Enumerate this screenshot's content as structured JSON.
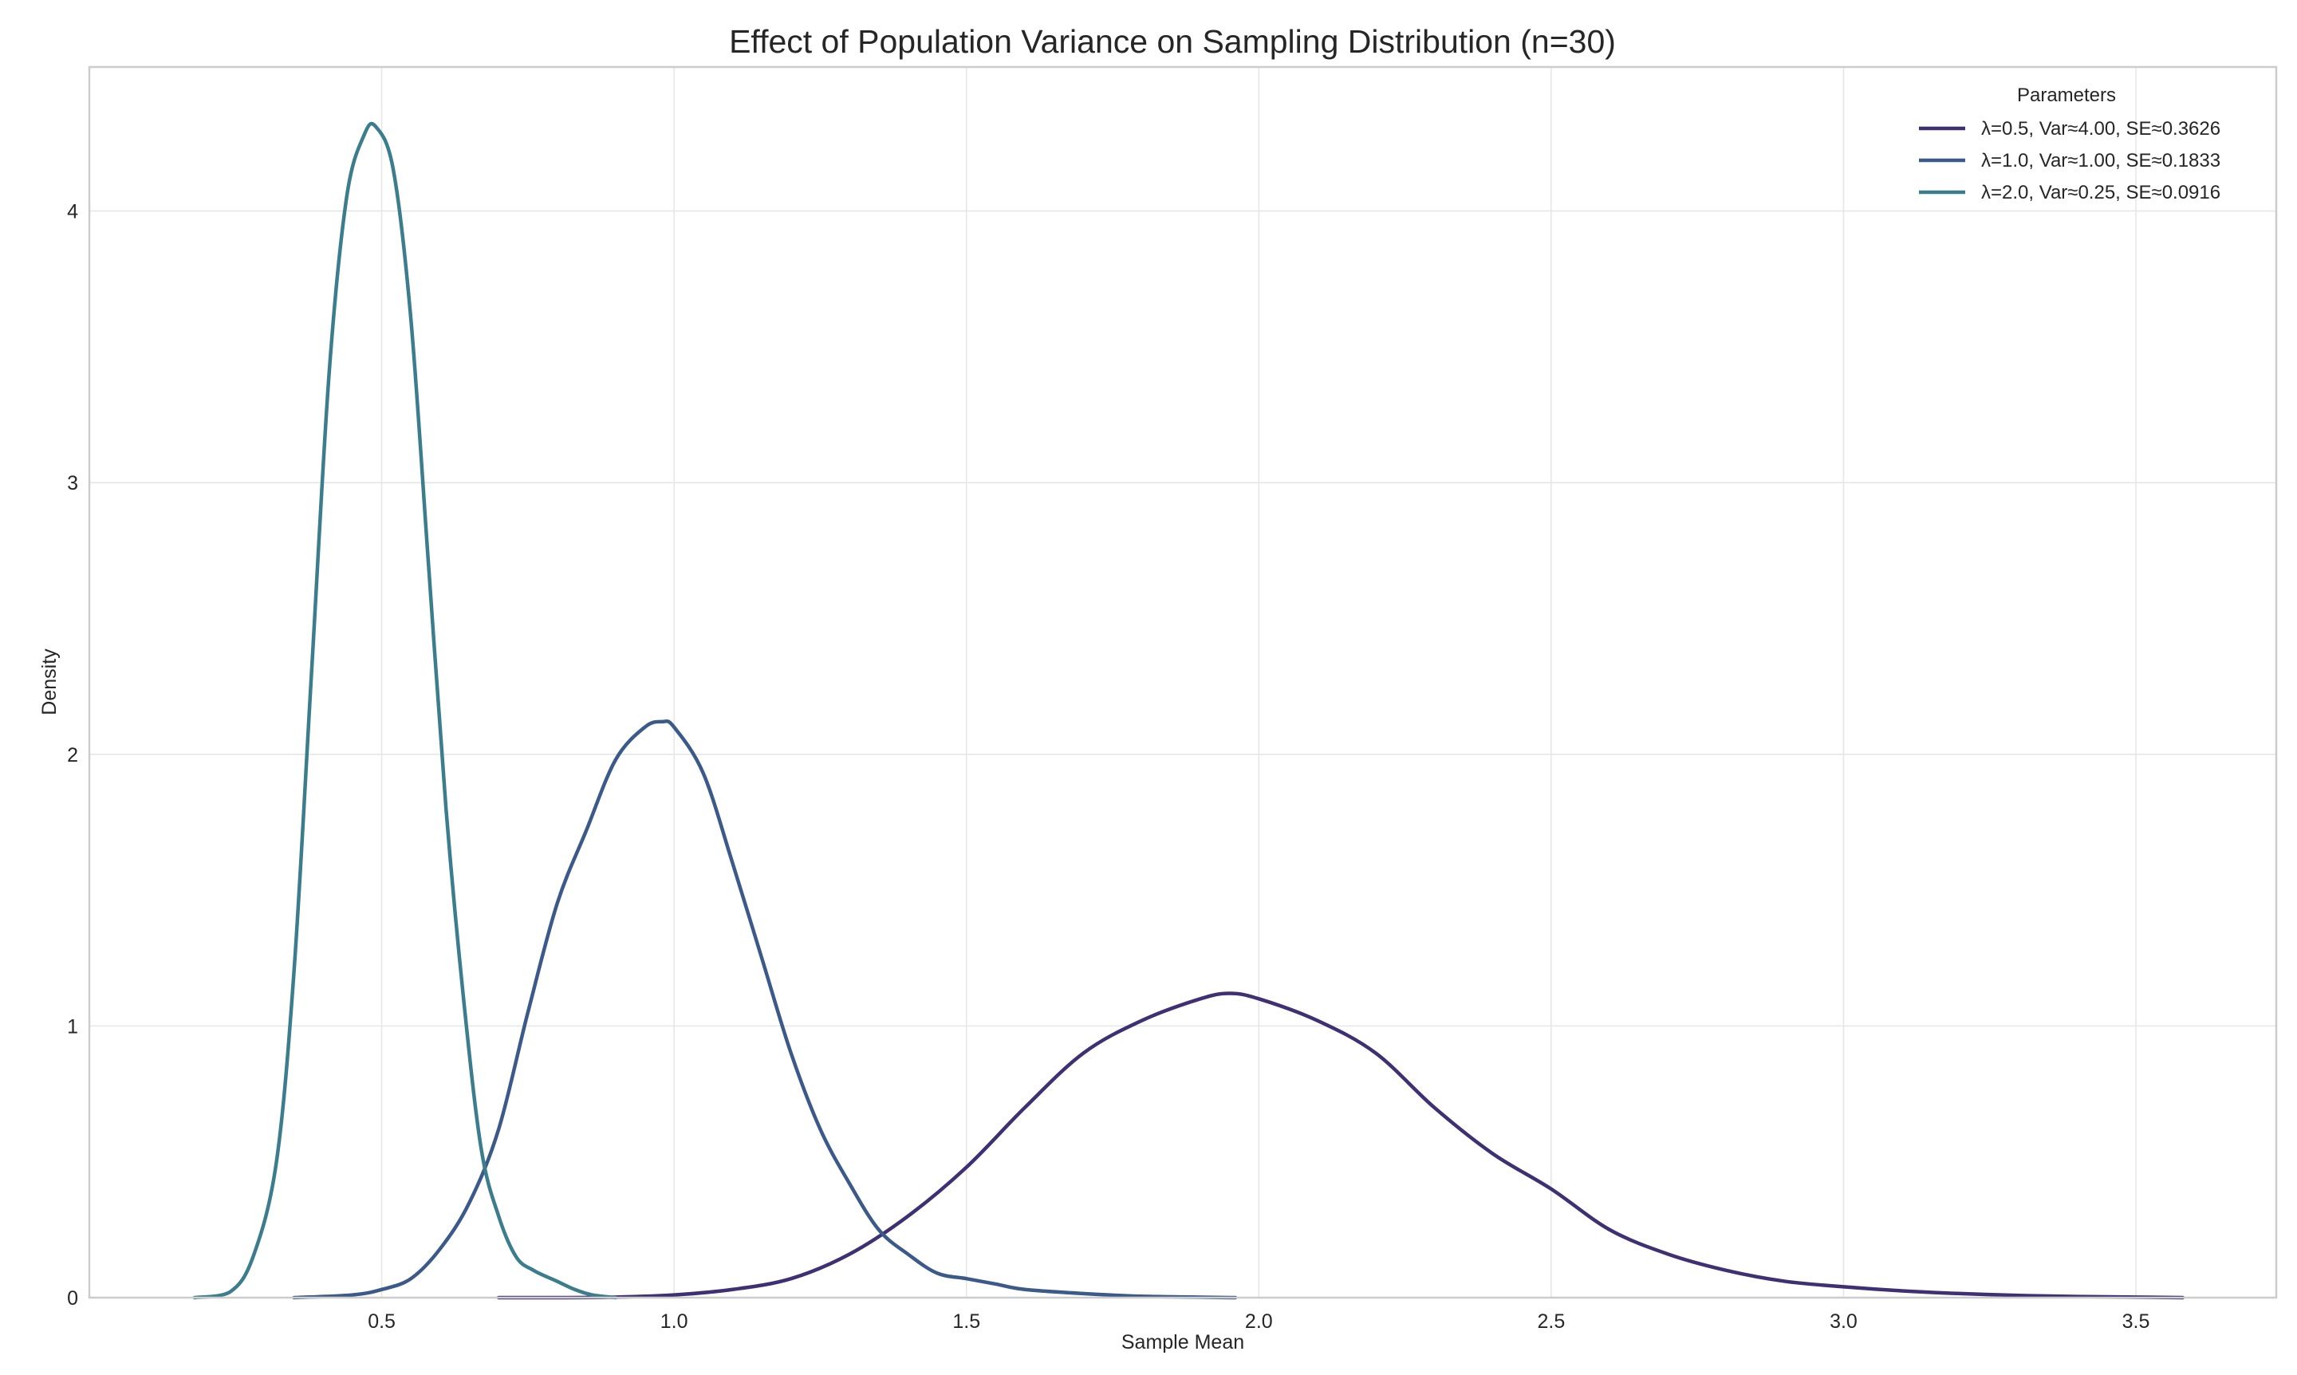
{
  "chart_data": {
    "type": "line",
    "title": "Effect of Population Variance on Sampling Distribution (n=30)",
    "xlabel": "Sample Mean",
    "ylabel": "Density",
    "xlim": [
      0.0,
      3.74
    ],
    "ylim": [
      0,
      4.53
    ],
    "xticks": [
      0.5,
      1.0,
      1.5,
      2.0,
      2.5,
      3.0,
      3.5
    ],
    "xtick_labels": [
      "0.5",
      "1.0",
      "1.5",
      "2.0",
      "2.5",
      "3.0",
      "3.5"
    ],
    "yticks": [
      0,
      1,
      2,
      3,
      4
    ],
    "ytick_labels": [
      "0",
      "1",
      "2",
      "3",
      "4"
    ],
    "grid": true,
    "legend": {
      "title": "Parameters",
      "position": "top-right"
    },
    "series": [
      {
        "name": "λ=0.5, Var≈4.00, SE≈0.3626",
        "color": "#3f2f73",
        "x": [
          0.7,
          0.8,
          0.9,
          1.0,
          1.1,
          1.2,
          1.3,
          1.4,
          1.5,
          1.6,
          1.7,
          1.8,
          1.9,
          1.95,
          2.0,
          2.1,
          2.2,
          2.3,
          2.4,
          2.5,
          2.6,
          2.7,
          2.8,
          2.9,
          3.0,
          3.1,
          3.2,
          3.3,
          3.4,
          3.5,
          3.58
        ],
        "y": [
          0.0,
          0.0,
          0.002,
          0.01,
          0.03,
          0.07,
          0.16,
          0.3,
          0.48,
          0.7,
          0.9,
          1.02,
          1.1,
          1.12,
          1.1,
          1.02,
          0.9,
          0.7,
          0.53,
          0.4,
          0.25,
          0.16,
          0.1,
          0.06,
          0.04,
          0.025,
          0.015,
          0.008,
          0.004,
          0.002,
          0.0
        ]
      },
      {
        "name": "λ=1.0, Var≈1.00, SE≈0.1833",
        "color": "#3b5a8a",
        "x": [
          0.35,
          0.45,
          0.5,
          0.55,
          0.6,
          0.65,
          0.7,
          0.75,
          0.8,
          0.85,
          0.9,
          0.95,
          0.98,
          1.0,
          1.05,
          1.1,
          1.15,
          1.2,
          1.25,
          1.3,
          1.35,
          1.4,
          1.45,
          1.5,
          1.55,
          1.6,
          1.7,
          1.8,
          1.96
        ],
        "y": [
          0.0,
          0.01,
          0.03,
          0.07,
          0.18,
          0.35,
          0.62,
          1.05,
          1.45,
          1.72,
          1.98,
          2.1,
          2.12,
          2.1,
          1.93,
          1.6,
          1.25,
          0.9,
          0.62,
          0.42,
          0.25,
          0.16,
          0.09,
          0.07,
          0.05,
          0.03,
          0.015,
          0.005,
          0.0
        ]
      },
      {
        "name": "λ=2.0, Var≈0.25, SE≈0.0916",
        "color": "#3b7d8c",
        "x": [
          0.18,
          0.24,
          0.28,
          0.32,
          0.35,
          0.38,
          0.41,
          0.44,
          0.47,
          0.49,
          0.52,
          0.55,
          0.58,
          0.61,
          0.64,
          0.67,
          0.7,
          0.73,
          0.76,
          0.8,
          0.83,
          0.86,
          0.9
        ],
        "y": [
          0.0,
          0.02,
          0.15,
          0.5,
          1.2,
          2.3,
          3.4,
          4.05,
          4.28,
          4.31,
          4.15,
          3.6,
          2.7,
          1.8,
          1.1,
          0.55,
          0.3,
          0.15,
          0.1,
          0.06,
          0.03,
          0.01,
          0.0
        ]
      }
    ]
  }
}
